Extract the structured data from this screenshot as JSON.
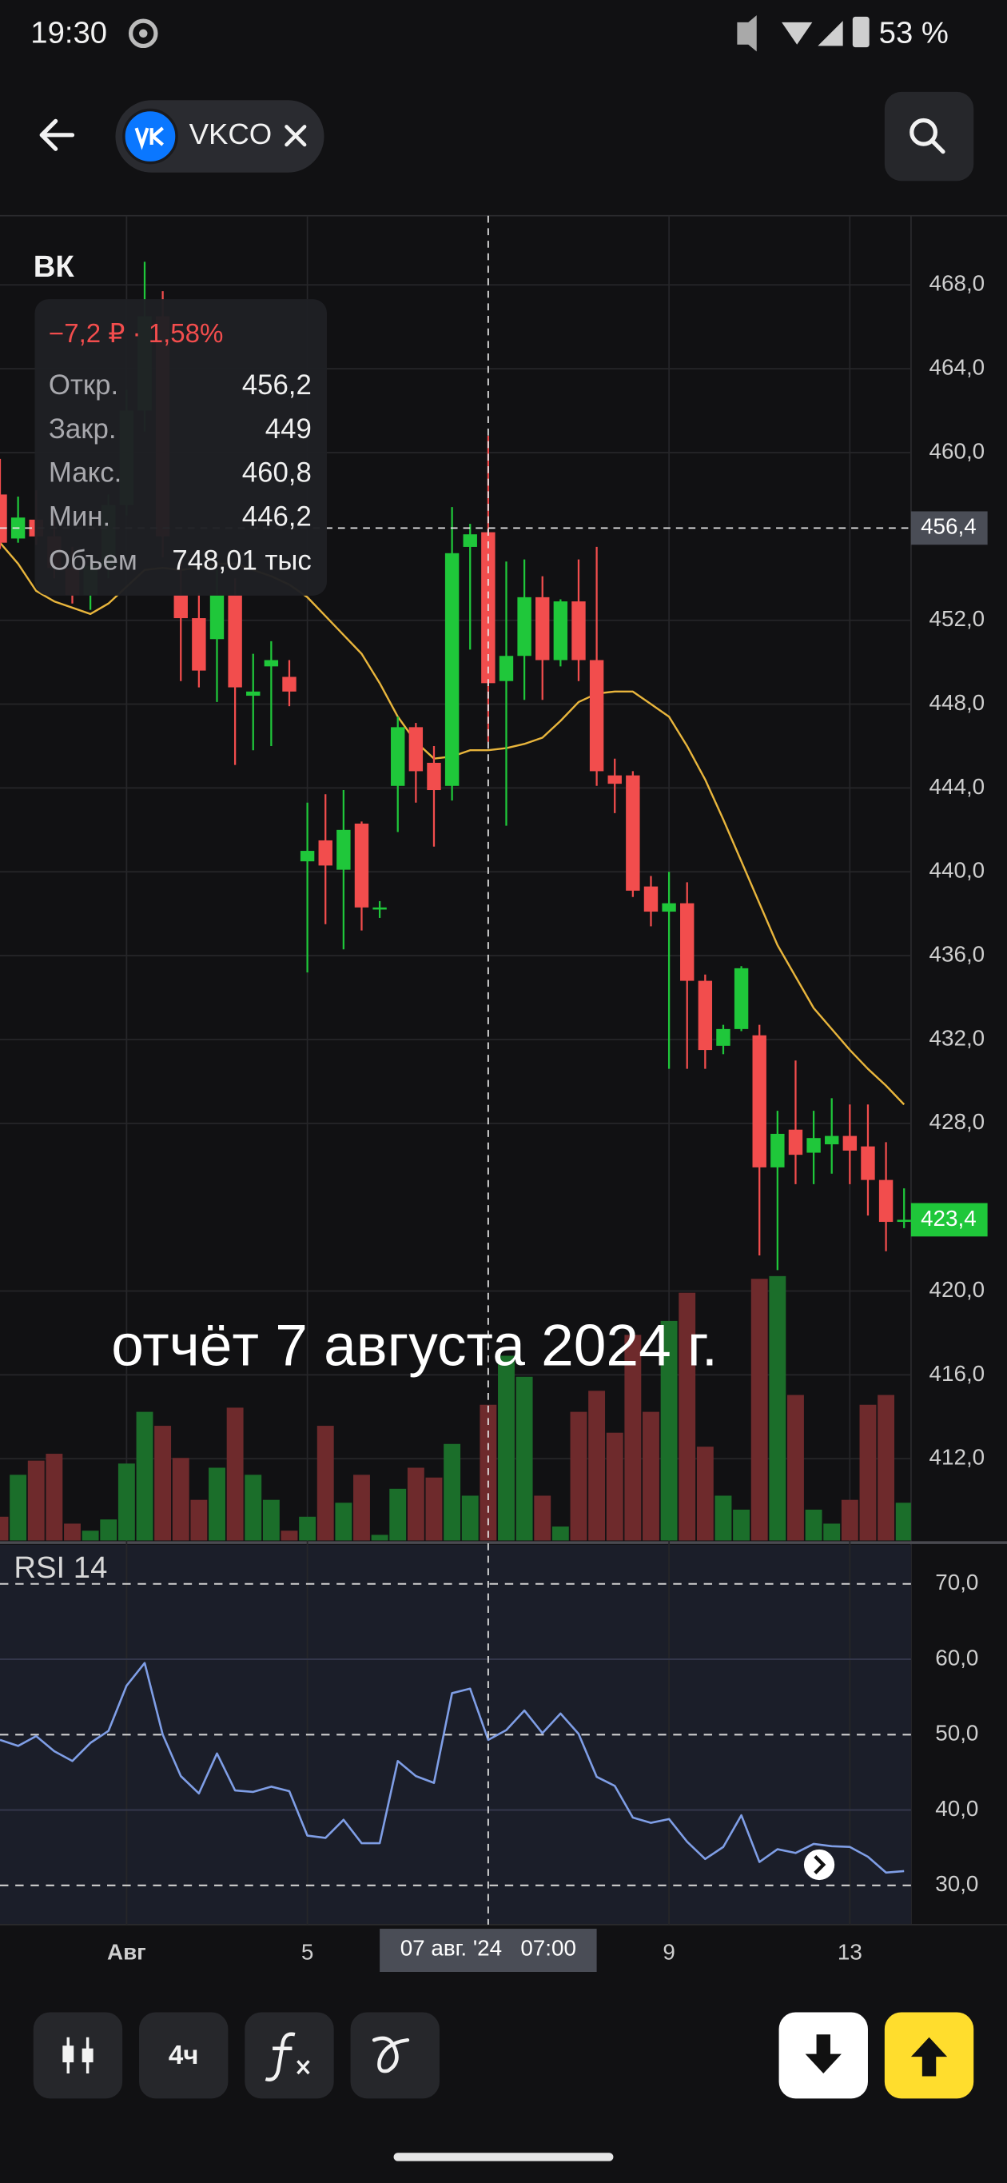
{
  "status_bar": {
    "time": "19:30",
    "battery": "53 %"
  },
  "header": {
    "ticker": "VKCO"
  },
  "chart_data": {
    "type": "candlestick",
    "title": "ВК",
    "categories": [
      null,
      null,
      null,
      null,
      null,
      null,
      null,
      "Авг",
      null,
      null,
      null,
      null,
      null,
      null,
      null,
      null,
      null,
      "5",
      null,
      null,
      null,
      null,
      null,
      null,
      null,
      null,
      null,
      null,
      null,
      null,
      null,
      null,
      null,
      null,
      null,
      null,
      null,
      "9",
      null,
      null,
      null,
      null,
      null,
      null,
      null,
      null,
      null,
      "13",
      null,
      null,
      null
    ],
    "open": [
      458.0,
      455.9,
      456.8,
      456.0,
      454.5,
      453.2,
      454.6,
      457.5,
      462.0,
      466.5,
      453.2,
      452.1,
      451.1,
      453.2,
      448.4,
      449.8,
      449.3,
      440.5,
      441.5,
      440.1,
      442.3,
      438.2,
      444.1,
      446.9,
      445.2,
      444.1,
      455.5,
      456.2,
      449.1,
      450.3,
      453.1,
      450.1,
      452.9,
      450.1,
      444.6,
      444.6,
      439.3,
      438.1,
      438.5,
      434.8,
      431.7,
      432.5,
      432.2,
      425.9,
      427.7,
      426.6,
      427.0,
      427.4,
      426.9,
      425.3,
      423.3
    ],
    "high": [
      459.7,
      457.9,
      458.2,
      457.0,
      455.5,
      455.0,
      458.0,
      463.0,
      469.1,
      467.7,
      455.0,
      453.3,
      454.4,
      454.0,
      450.4,
      451.0,
      450.1,
      443.3,
      443.7,
      443.9,
      442.4,
      438.6,
      447.4,
      447.1,
      446.0,
      457.4,
      456.6,
      460.8,
      454.8,
      454.9,
      454.1,
      453.0,
      454.9,
      455.5,
      445.4,
      444.8,
      439.8,
      440.0,
      439.5,
      435.1,
      432.7,
      435.5,
      432.7,
      428.6,
      431.0,
      428.6,
      429.2,
      428.9,
      428.9,
      427.1,
      424.9
    ],
    "low": [
      455.4,
      455.7,
      455.6,
      454.0,
      452.8,
      452.5,
      454.0,
      457.0,
      461.0,
      455.0,
      449.1,
      448.8,
      448.1,
      445.1,
      445.8,
      446.0,
      447.9,
      435.2,
      437.5,
      436.3,
      437.2,
      437.8,
      441.9,
      443.3,
      441.2,
      443.4,
      450.6,
      446.2,
      442.2,
      448.2,
      448.2,
      449.8,
      449.1,
      444.1,
      442.8,
      438.8,
      437.4,
      430.6,
      430.6,
      430.6,
      431.3,
      432.4,
      421.7,
      421.0,
      425.1,
      425.1,
      425.6,
      425.1,
      423.6,
      421.9,
      423.0
    ],
    "close": [
      455.7,
      456.9,
      456.0,
      454.5,
      453.2,
      454.6,
      457.5,
      462.0,
      466.5,
      456.0,
      452.1,
      449.6,
      453.2,
      448.8,
      448.6,
      450.1,
      448.6,
      441.0,
      440.3,
      442.0,
      438.3,
      438.3,
      446.9,
      444.8,
      443.9,
      455.2,
      456.1,
      449,
      450.3,
      453.1,
      450.1,
      452.9,
      450.1,
      444.8,
      444.2,
      439.1,
      438.1,
      438.5,
      434.8,
      431.5,
      432.5,
      435.4,
      425.9,
      427.5,
      426.5,
      427.3,
      427.4,
      426.7,
      425.3,
      423.3,
      423.4
    ],
    "up_color": "#1fc73a",
    "down_color": "#f24d4d",
    "ylim": [
      408.1,
      471.3
    ],
    "yticks": [
      {
        "value": 412,
        "label": "412,0"
      },
      {
        "value": 416,
        "label": "416,0"
      },
      {
        "value": 420,
        "label": "420,0"
      },
      {
        "value": 428,
        "label": "428,0"
      },
      {
        "value": 432,
        "label": "432,0"
      },
      {
        "value": 436,
        "label": "436,0"
      },
      {
        "value": 440,
        "label": "440,0"
      },
      {
        "value": 444,
        "label": "444,0"
      },
      {
        "value": 448,
        "label": "448,0"
      },
      {
        "value": 452,
        "label": "452,0"
      },
      {
        "value": 460,
        "label": "460,0"
      },
      {
        "value": 464,
        "label": "464,0"
      },
      {
        "value": 468,
        "label": "468,0"
      }
    ],
    "grid": true,
    "ma": {
      "color": "#e8b53c",
      "values": [
        455.7,
        454.7,
        453.4,
        452.9,
        452.6,
        452.3,
        452.8,
        453.6,
        454.4,
        454.5,
        454.4,
        454.5,
        454.7,
        454.7,
        454.4,
        454.1,
        453.7,
        453.1,
        452.2,
        451.3,
        450.4,
        449.0,
        447.4,
        446.2,
        445.4,
        445.5,
        445.8,
        445.8,
        445.9,
        446.1,
        446.4,
        447.2,
        448.1,
        448.5,
        448.6,
        448.6,
        448.0,
        447.4,
        446.0,
        444.4,
        442.5,
        440.5,
        438.5,
        436.5,
        435.0,
        433.5,
        432.5,
        431.5,
        430.6,
        429.8,
        428.9
      ]
    },
    "volume": {
      "up_color": "#1b6e2a",
      "down_color": "#6e2a2c",
      "values": [
        131,
        362,
        440,
        478,
        93,
        54,
        116,
        424,
        709,
        632,
        455,
        224,
        401,
        732,
        362,
        224,
        54,
        131,
        632,
        208,
        362,
        31,
        285,
        401,
        347,
        532,
        247,
        748.01,
        1018,
        902,
        247,
        77,
        709,
        825,
        594,
        1133,
        709,
        1210,
        1365,
        517,
        247,
        170,
        1442,
        1457,
        802,
        170,
        93,
        224,
        748,
        802,
        208
      ]
    },
    "rsi": {
      "title": "RSI 14",
      "color": "#7f9ee6",
      "values": [
        49.3,
        48.5,
        49.8,
        47.8,
        46.5,
        48.9,
        50.5,
        56.5,
        59.5,
        50.0,
        44.5,
        42.2,
        47.5,
        42.6,
        42.4,
        43.1,
        42.5,
        36.6,
        36.3,
        38.7,
        35.6,
        35.6,
        46.5,
        44.5,
        43.6,
        55.5,
        56.1,
        49.3,
        50.6,
        53.2,
        50.2,
        52.8,
        50.1,
        44.4,
        43.2,
        39.0,
        38.3,
        38.8,
        35.8,
        33.5,
        35.1,
        39.3,
        33.1,
        34.8,
        34.3,
        35.5,
        35.2,
        35.1,
        33.8,
        31.7,
        31.9
      ],
      "ylim": [
        24.8,
        75.2
      ],
      "yticks": [
        {
          "value": 30,
          "label": "30,0"
        },
        {
          "value": 40,
          "label": "40,0"
        },
        {
          "value": 50,
          "label": "50,0"
        },
        {
          "value": 60,
          "label": "60,0"
        },
        {
          "value": 70,
          "label": "70,0"
        }
      ]
    },
    "annotation": "отчёт 7 августа 2024 г.",
    "crosshair": {
      "x_label": "07 авг. '24   07:00",
      "y_label": {
        "value": 456.4,
        "label": "456,4"
      }
    },
    "last_price": {
      "value": 423.4,
      "label": "423,4"
    }
  },
  "tooltip": {
    "change": "−7,2 ₽ · 1,58%",
    "rows": [
      [
        "Откр.",
        "456,2"
      ],
      [
        "Закр.",
        "449"
      ],
      [
        "Макс.",
        "460,8"
      ],
      [
        "Мин.",
        "446,2"
      ],
      [
        "Объем",
        "748,01 тыс"
      ]
    ]
  },
  "toolbar": {
    "interval": "4ч"
  }
}
